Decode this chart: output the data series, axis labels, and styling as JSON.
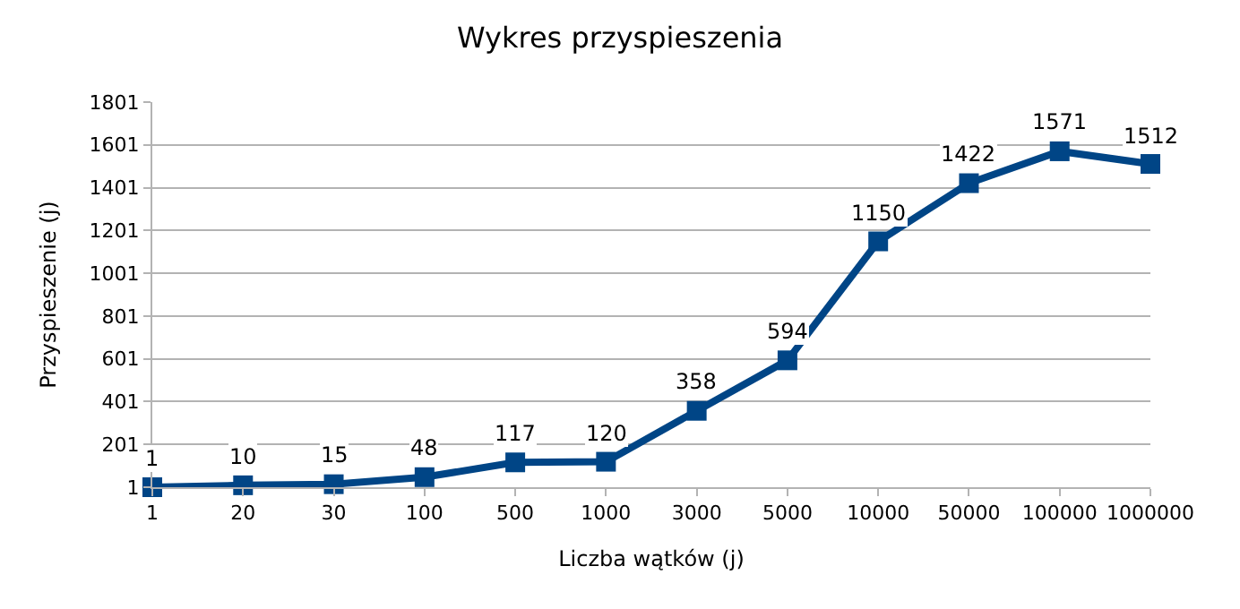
{
  "chart_data": {
    "type": "line",
    "title": "Wykres przyspieszenia",
    "xlabel": "Liczba wątków (j)",
    "ylabel": "Przyspieszenie (j)",
    "categories": [
      "1",
      "20",
      "30",
      "100",
      "500",
      "1000",
      "3000",
      "5000",
      "10000",
      "50000",
      "100000",
      "1000000"
    ],
    "series": [
      {
        "color": "#004586",
        "values": [
          1,
          10,
          15,
          48,
          117,
          120,
          358,
          594,
          1150,
          1422,
          1571,
          1512
        ]
      }
    ],
    "ylim": [
      1,
      1801
    ],
    "yticks": [
      1,
      201,
      401,
      601,
      801,
      1001,
      1201,
      1401,
      1601,
      1801
    ],
    "grid": "y",
    "marker": "square",
    "line_style": "solid",
    "data_labels": true
  }
}
